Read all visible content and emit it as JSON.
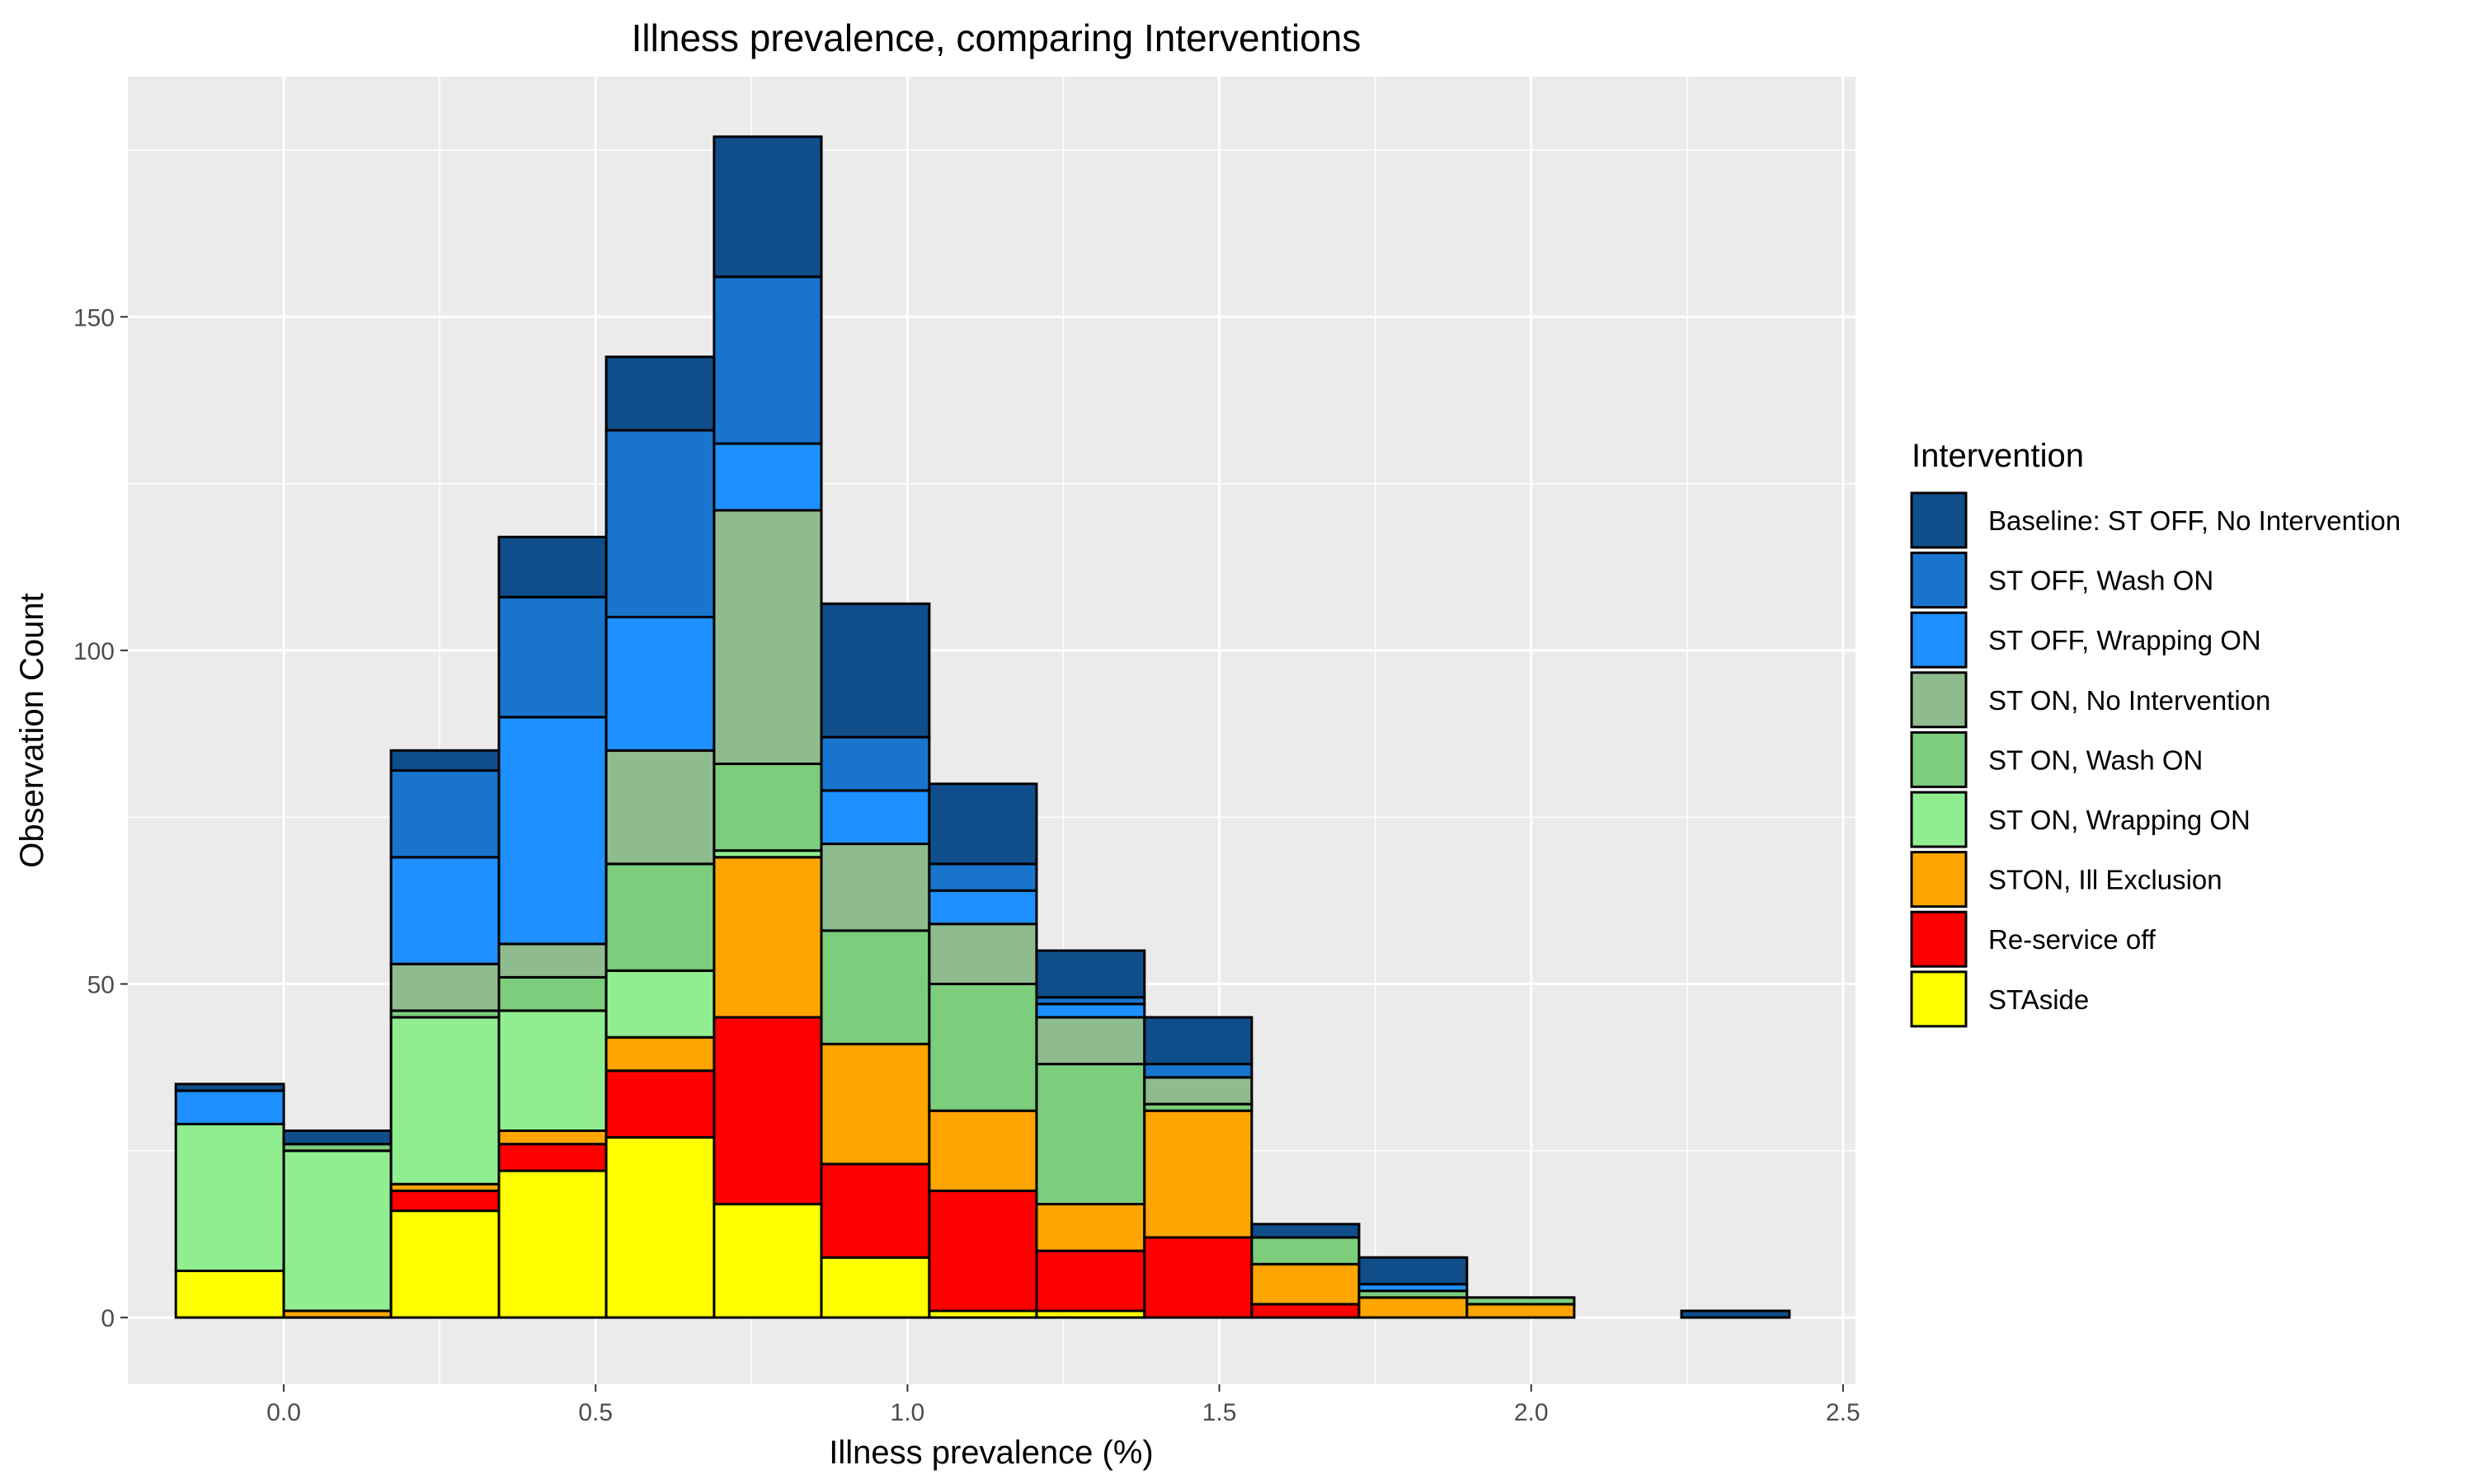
{
  "chart_data": {
    "type": "bar",
    "stacked": true,
    "title": "Illness prevalence, comparing Interventions",
    "xlabel": "Illness prevalence (%)",
    "ylabel": "Observation Count",
    "xlim": [
      -0.25,
      2.52
    ],
    "ylim": [
      -10,
      186
    ],
    "x_ticks": [
      0.0,
      0.5,
      1.0,
      1.5,
      2.0,
      2.5
    ],
    "x_tick_labels": [
      "0.0",
      "0.5",
      "1.0",
      "1.5",
      "2.0",
      "2.5"
    ],
    "y_ticks": [
      0,
      50,
      100,
      150
    ],
    "y_tick_labels": [
      "0",
      "50",
      "100",
      "150"
    ],
    "grid": true,
    "legend_position": "right",
    "legend_title": "Intervention",
    "bins": [
      [
        -0.173,
        0.0
      ],
      [
        0.0,
        0.172
      ],
      [
        0.172,
        0.345
      ],
      [
        0.345,
        0.517
      ],
      [
        0.517,
        0.69
      ],
      [
        0.69,
        0.862
      ],
      [
        0.862,
        1.035
      ],
      [
        1.035,
        1.207
      ],
      [
        1.207,
        1.38
      ],
      [
        1.38,
        1.552
      ],
      [
        1.552,
        1.724
      ],
      [
        1.724,
        1.897
      ],
      [
        1.897,
        2.069
      ],
      [
        2.069,
        2.241
      ],
      [
        2.241,
        2.414
      ]
    ],
    "series": [
      {
        "name": "Baseline: ST OFF, No Intervention",
        "color": "#104e8b",
        "values": [
          1,
          2,
          3,
          9,
          11,
          21,
          20,
          12,
          7,
          7,
          2,
          4,
          0,
          0,
          1
        ]
      },
      {
        "name": "ST OFF, Wash ON",
        "color": "#1874cd",
        "values": [
          0,
          0,
          13,
          18,
          28,
          25,
          8,
          4,
          1,
          2,
          0,
          0,
          0,
          0,
          0
        ]
      },
      {
        "name": "ST OFF, Wrapping ON",
        "color": "#1e90ff",
        "values": [
          5,
          0,
          16,
          34,
          20,
          10,
          8,
          5,
          2,
          0,
          0,
          1,
          0,
          0,
          0
        ]
      },
      {
        "name": "ST ON, No Intervention",
        "color": "#8fbc8f",
        "values": [
          0,
          0,
          7,
          5,
          17,
          38,
          13,
          9,
          7,
          4,
          0,
          0,
          0,
          0,
          0
        ]
      },
      {
        "name": "ST ON, Wash ON",
        "color": "#7ccd7c",
        "values": [
          0,
          1,
          1,
          5,
          16,
          13,
          17,
          19,
          21,
          1,
          4,
          1,
          1,
          0,
          0
        ]
      },
      {
        "name": "ST ON, Wrapping ON",
        "color": "#90ee90",
        "values": [
          22,
          24,
          25,
          18,
          10,
          1,
          0,
          0,
          0,
          0,
          0,
          0,
          0,
          0,
          0
        ]
      },
      {
        "name": "STON, Ill Exclusion",
        "color": "#ffa500",
        "values": [
          0,
          1,
          1,
          2,
          5,
          24,
          18,
          12,
          7,
          19,
          6,
          3,
          2,
          0,
          0
        ]
      },
      {
        "name": "Re-service off",
        "color": "#ff0000",
        "values": [
          0,
          0,
          3,
          4,
          10,
          28,
          14,
          18,
          9,
          12,
          2,
          0,
          0,
          0,
          0
        ]
      },
      {
        "name": "STAside",
        "color": "#ffff00",
        "values": [
          7,
          0,
          16,
          22,
          27,
          17,
          9,
          1,
          1,
          0,
          0,
          0,
          0,
          0,
          0
        ]
      }
    ],
    "totals": [
      35,
      28,
      85,
      117,
      144,
      177,
      107,
      80,
      55,
      45,
      14,
      9,
      3,
      0,
      1
    ]
  },
  "colors": {
    "panel_background": "#ebebeb",
    "grid": "#ffffff",
    "bar_outline": "#000000"
  }
}
